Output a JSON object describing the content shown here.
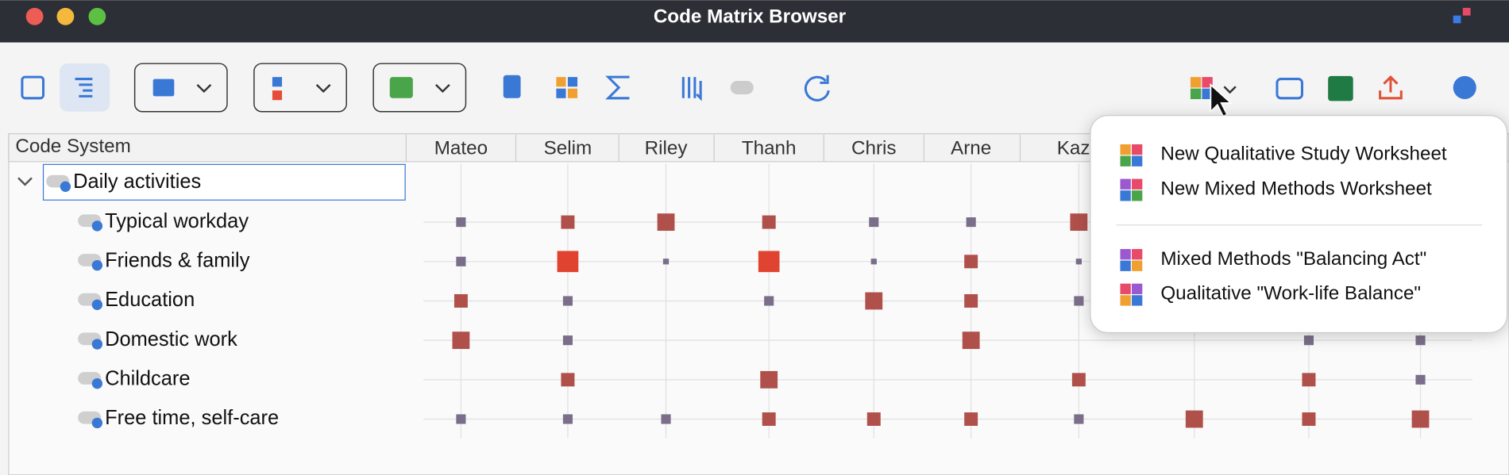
{
  "window": {
    "title": "Code Matrix Browser"
  },
  "menu": {
    "items": [
      "New Qualitative Study Worksheet",
      "New Mixed Methods Worksheet",
      "Mixed Methods \"Balancing Act\"",
      "Qualitative \"Work-life Balance\""
    ]
  },
  "chart_data": {
    "type": "matrix",
    "row_header": "Code System",
    "parent_code": "Daily activities",
    "columns": [
      "Mateo",
      "Selim",
      "Riley",
      "Thanh",
      "Chris",
      "Arne",
      "Kazu",
      null,
      null,
      null
    ],
    "rows": [
      "Typical workday",
      "Friends & family",
      "Education",
      "Domestic work",
      "Childcare",
      "Free time, self-care"
    ],
    "values": [
      [
        2,
        3,
        4,
        3,
        2,
        2,
        4,
        null,
        null,
        null
      ],
      [
        2,
        5,
        1,
        5,
        1,
        3,
        1,
        null,
        null,
        null
      ],
      [
        3,
        2,
        0,
        2,
        4,
        3,
        2,
        null,
        null,
        null
      ],
      [
        4,
        2,
        0,
        0,
        0,
        4,
        0,
        0,
        2,
        2
      ],
      [
        0,
        3,
        0,
        4,
        0,
        0,
        3,
        0,
        3,
        2
      ],
      [
        2,
        2,
        2,
        3,
        3,
        3,
        2,
        4,
        3,
        4
      ]
    ],
    "level_colors": [
      "#7b6e8a",
      "#7b6e8a",
      "#b0504a",
      "#b0504a",
      "#e0432f"
    ]
  }
}
